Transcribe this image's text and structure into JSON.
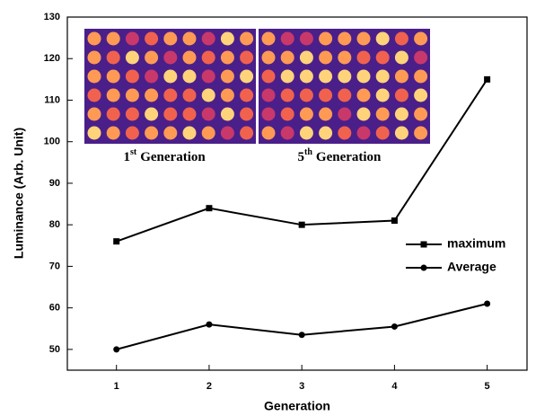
{
  "chart_data": {
    "type": "line",
    "x_label": "Generation",
    "y_label": "Luminance (Arb. Unit)",
    "x": [
      1,
      2,
      3,
      4,
      5
    ],
    "series": [
      {
        "name": "maximum",
        "color": "#000000",
        "marker": "square",
        "values": [
          76,
          84,
          80,
          81,
          115
        ]
      },
      {
        "name": "Average",
        "color": "#000000",
        "marker": "circle",
        "values": [
          50,
          56,
          53.5,
          55.5,
          61
        ]
      }
    ],
    "xlim": [
      0.47,
      5.43
    ],
    "xticks": [
      1,
      2,
      3,
      4,
      5
    ],
    "ylim": [
      45,
      130
    ],
    "yticks": [
      50,
      60,
      70,
      80,
      90,
      100,
      110,
      120,
      130
    ],
    "legend": "right",
    "insets": [
      {
        "number": "1",
        "suffix": "st",
        "text": "Generation"
      },
      {
        "number": "5",
        "suffix": "th",
        "text": "Generation"
      }
    ]
  }
}
